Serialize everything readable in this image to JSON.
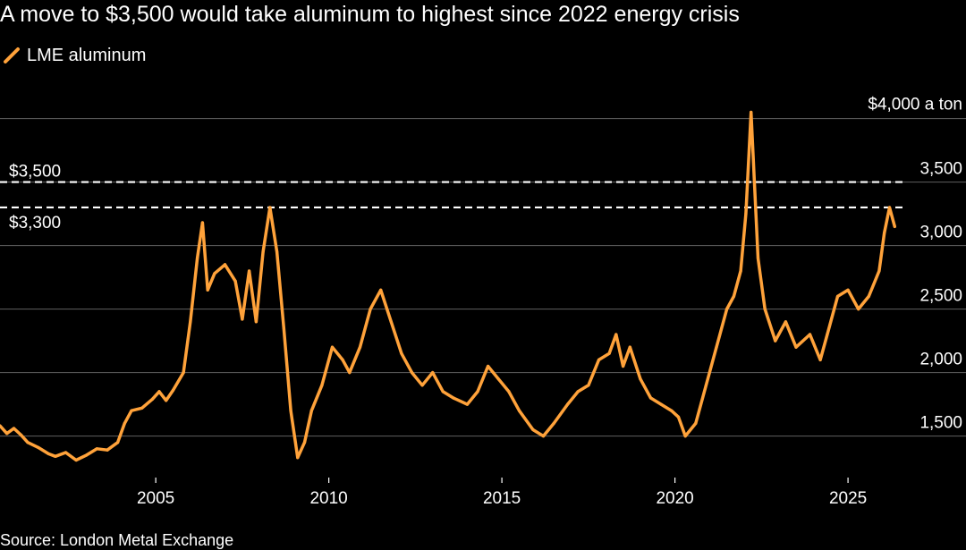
{
  "page": {
    "title": "A move to $3,500 would take aluminum to highest since 2022 energy crisis",
    "source": "Source: London Metal Exchange"
  },
  "colors": {
    "series": "#ffa23a",
    "background": "#000000",
    "grid": "#555555",
    "text": "#ffffff"
  },
  "chart_data": {
    "type": "line",
    "title": "A move to $3,500 would take aluminum to highest since 2022 energy crisis",
    "xlabel": "",
    "ylabel": "",
    "unit_label": "$4,000 a ton",
    "xlim": [
      2000.5,
      2026.6
    ],
    "ylim": [
      1180,
      4180
    ],
    "x_ticks": [
      {
        "value": 2005,
        "label": "2005"
      },
      {
        "value": 2010,
        "label": "2010"
      },
      {
        "value": 2015,
        "label": "2015"
      },
      {
        "value": 2020,
        "label": "2020"
      },
      {
        "value": 2025,
        "label": "2025"
      }
    ],
    "y_ticks": [
      {
        "value": 1500,
        "label": "1,500"
      },
      {
        "value": 2000,
        "label": "2,000"
      },
      {
        "value": 2500,
        "label": "2,500"
      },
      {
        "value": 3000,
        "label": "3,000"
      },
      {
        "value": 3500,
        "label": "3,500"
      },
      {
        "value": 4000,
        "label": "$4,000 a ton"
      }
    ],
    "reference_lines": [
      {
        "value": 3500,
        "label": "$3,500",
        "label_position": "above"
      },
      {
        "value": 3300,
        "label": "$3,300",
        "label_position": "below"
      }
    ],
    "legend": {
      "position": "top-left",
      "entries": [
        "LME aluminum"
      ]
    },
    "series": [
      {
        "name": "LME aluminum",
        "x": [
          2000.5,
          2000.7,
          2000.9,
          2001.1,
          2001.3,
          2001.6,
          2001.9,
          2002.1,
          2002.4,
          2002.7,
          2003.0,
          2003.3,
          2003.6,
          2003.9,
          2004.1,
          2004.3,
          2004.6,
          2004.9,
          2005.1,
          2005.3,
          2005.5,
          2005.8,
          2006.0,
          2006.2,
          2006.35,
          2006.5,
          2006.7,
          2007.0,
          2007.3,
          2007.5,
          2007.7,
          2007.9,
          2008.1,
          2008.3,
          2008.5,
          2008.7,
          2008.9,
          2009.1,
          2009.3,
          2009.5,
          2009.8,
          2010.1,
          2010.4,
          2010.6,
          2010.9,
          2011.2,
          2011.5,
          2011.8,
          2012.1,
          2012.4,
          2012.7,
          2013.0,
          2013.3,
          2013.6,
          2014.0,
          2014.3,
          2014.6,
          2014.9,
          2015.2,
          2015.5,
          2015.9,
          2016.2,
          2016.5,
          2016.9,
          2017.2,
          2017.5,
          2017.8,
          2018.1,
          2018.3,
          2018.5,
          2018.7,
          2019.0,
          2019.3,
          2019.6,
          2019.9,
          2020.1,
          2020.3,
          2020.6,
          2020.9,
          2021.2,
          2021.5,
          2021.7,
          2021.9,
          2022.05,
          2022.2,
          2022.4,
          2022.6,
          2022.9,
          2023.2,
          2023.5,
          2023.9,
          2024.2,
          2024.4,
          2024.7,
          2025.0,
          2025.3,
          2025.6,
          2025.9,
          2026.05,
          2026.2,
          2026.35
        ],
        "values": [
          1580,
          1520,
          1560,
          1510,
          1450,
          1410,
          1360,
          1340,
          1370,
          1310,
          1350,
          1400,
          1390,
          1450,
          1600,
          1700,
          1720,
          1790,
          1850,
          1780,
          1860,
          2000,
          2400,
          2900,
          3180,
          2650,
          2780,
          2850,
          2720,
          2420,
          2800,
          2400,
          2950,
          3300,
          2950,
          2350,
          1700,
          1330,
          1450,
          1700,
          1900,
          2200,
          2100,
          2000,
          2200,
          2500,
          2650,
          2400,
          2150,
          2000,
          1900,
          2000,
          1850,
          1800,
          1750,
          1850,
          2050,
          1950,
          1850,
          1700,
          1550,
          1500,
          1600,
          1750,
          1850,
          1900,
          2100,
          2150,
          2300,
          2050,
          2200,
          1950,
          1800,
          1750,
          1700,
          1650,
          1500,
          1600,
          1900,
          2200,
          2500,
          2600,
          2800,
          3250,
          4050,
          2900,
          2500,
          2250,
          2400,
          2200,
          2300,
          2100,
          2300,
          2600,
          2650,
          2500,
          2600,
          2800,
          3100,
          3300,
          3150
        ]
      }
    ]
  }
}
